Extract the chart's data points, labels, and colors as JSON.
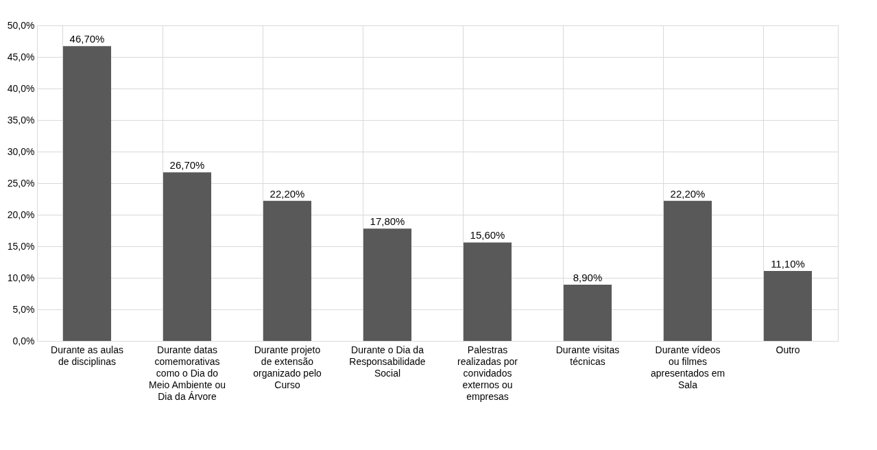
{
  "chart_data": {
    "type": "bar",
    "categories": [
      "Durante as aulas de disciplinas",
      "Durante datas comemorativas como o Dia do Meio Ambiente ou Dia da Árvore",
      "Durante projeto de extensão organizado pelo Curso",
      "Durante o Dia da Responsabilidade Social",
      "Palestras realizadas por convidados externos ou empresas",
      "Durante visitas técnicas",
      "Durante vídeos ou filmes apresentados em Sala",
      "Outro"
    ],
    "values": [
      46.7,
      26.7,
      22.2,
      17.8,
      15.6,
      8.9,
      22.2,
      11.1
    ],
    "value_labels": [
      "46,70%",
      "26,70%",
      "22,20%",
      "17,80%",
      "15,60%",
      "8,90%",
      "22,20%",
      "11,10%"
    ],
    "color": "#595959",
    "ylim": [
      0,
      50
    ],
    "yticks": [
      {
        "value": 0,
        "label": "0,0%"
      },
      {
        "value": 5,
        "label": "5,0%"
      },
      {
        "value": 10,
        "label": "10,0%"
      },
      {
        "value": 15,
        "label": "15,0%"
      },
      {
        "value": 20,
        "label": "20,0%"
      },
      {
        "value": 25,
        "label": "25,0%"
      },
      {
        "value": 30,
        "label": "30,0%"
      },
      {
        "value": 35,
        "label": "35,0%"
      },
      {
        "value": 40,
        "label": "40,0%"
      },
      {
        "value": 45,
        "label": "45,0%"
      },
      {
        "value": 50,
        "label": "50,0%"
      }
    ],
    "grid": true
  }
}
